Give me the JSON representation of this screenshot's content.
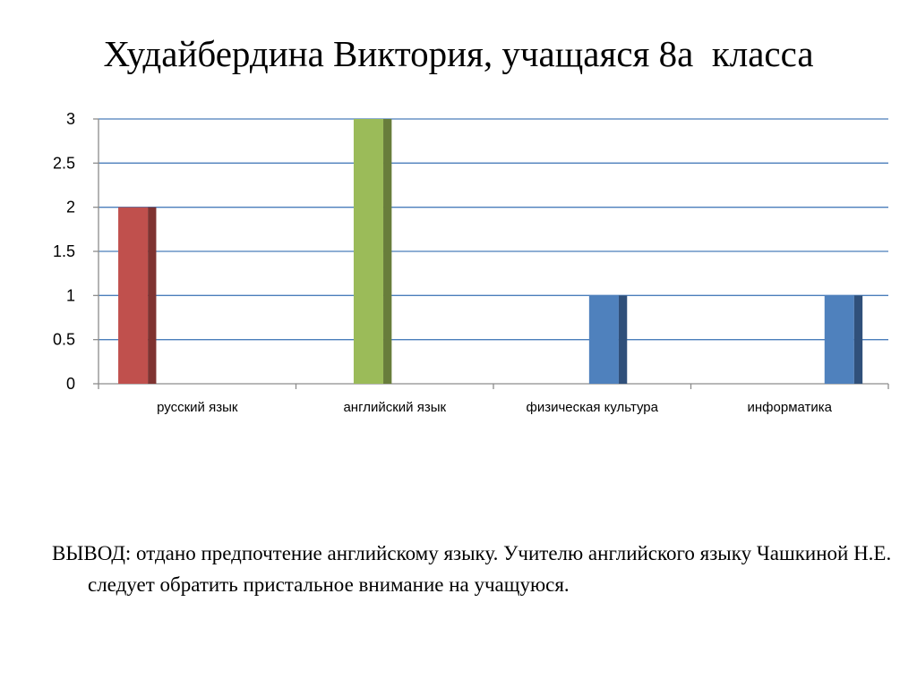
{
  "slide": {
    "title": "Худайбердина Виктория, учащаяся 8а  класса",
    "conclusion": "ВЫВОД: отдано предпочтение английскому языку. Учителю английского языку Чашкиной Н.Е. следует обратить пристальное внимание на учащуюся."
  },
  "chart_data": {
    "type": "bar",
    "categories": [
      "русский язык",
      "английский язык",
      "физическая культура",
      "информатика"
    ],
    "values": [
      2,
      3,
      1,
      1
    ],
    "bar_colors": [
      "#C0504D",
      "#9BBB59",
      "#4F81BD",
      "#4F81BD"
    ],
    "bar_side_colors": [
      "#7F3331",
      "#687D3B",
      "#30507A",
      "#30507A"
    ],
    "yticks": [
      "0",
      "0.5",
      "1",
      "1.5",
      "2",
      "2.5",
      "3"
    ],
    "ylim": [
      0,
      3
    ],
    "grid": true,
    "gridline_color": "#4A7EBB"
  }
}
